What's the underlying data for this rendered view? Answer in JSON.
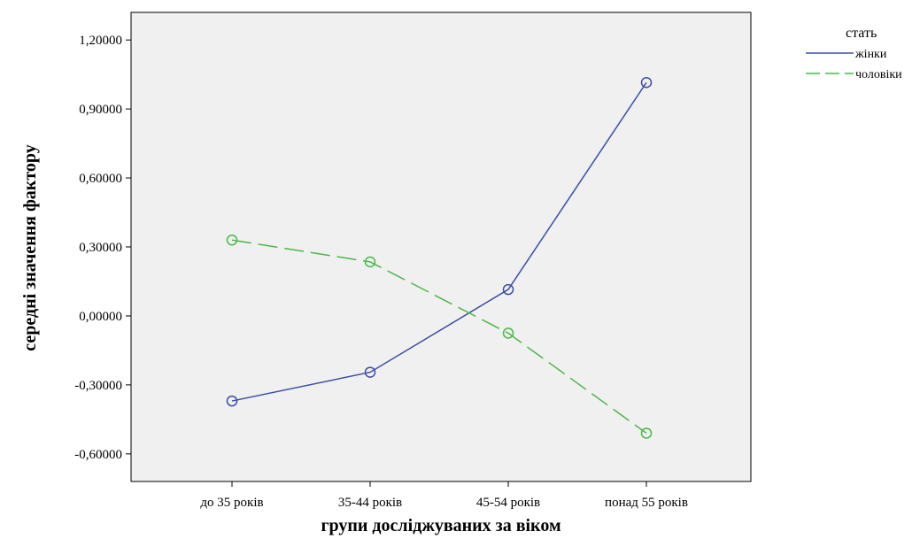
{
  "chart_data": {
    "type": "line",
    "categories": [
      "до 35 років",
      "35-44 років",
      "45-54 років",
      "понад 55 років"
    ],
    "xlabel": "групи досліджуваних за віком",
    "ylabel": "середні значення фактору",
    "ylim": [
      -0.72,
      1.32
    ],
    "yticks": [
      {
        "value": 1.2,
        "label": "1,20000"
      },
      {
        "value": 0.9,
        "label": "0,90000"
      },
      {
        "value": 0.6,
        "label": "0,60000"
      },
      {
        "value": 0.3,
        "label": "0,30000"
      },
      {
        "value": 0.0,
        "label": "0,00000"
      },
      {
        "value": -0.3,
        "label": "-0,30000"
      },
      {
        "value": -0.6,
        "label": "-0,60000"
      }
    ],
    "grid": false,
    "legend": {
      "title": "стать",
      "position": "top-right"
    },
    "series": [
      {
        "name": "жінки",
        "values": [
          -0.37,
          -0.245,
          0.115,
          1.015
        ],
        "color": "#3a4ea3",
        "dash": "solid"
      },
      {
        "name": "чоловіки",
        "values": [
          0.33,
          0.235,
          -0.075,
          -0.51
        ],
        "color": "#4cb848",
        "dash": "dashed"
      }
    ]
  }
}
